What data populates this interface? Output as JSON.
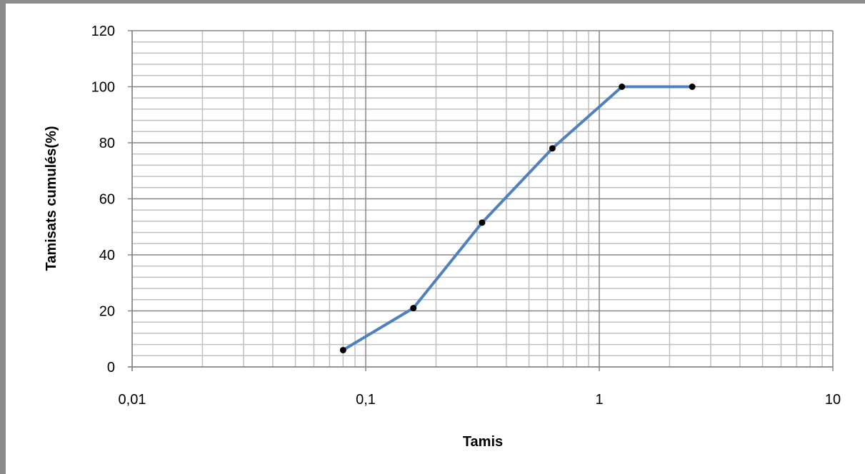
{
  "chart_data": {
    "type": "line",
    "title": "",
    "xlabel": "Tamis",
    "ylabel": "Tamisats cumulés(%)",
    "x_scale": "log",
    "xlim": [
      0.01,
      10
    ],
    "ylim": [
      0,
      120
    ],
    "x_ticks": [
      "0,01",
      "0,1",
      "1",
      "10"
    ],
    "y_ticks": [
      "0",
      "20",
      "40",
      "60",
      "80",
      "100",
      "120"
    ],
    "grid": true,
    "legend": "none",
    "series": [
      {
        "x": [
          0.08,
          0.16,
          0.315,
          0.63,
          1.25,
          2.5
        ],
        "y": [
          6,
          21,
          51.5,
          78,
          100,
          100
        ],
        "line_color": "#4f81bd",
        "marker_color": "#000000"
      }
    ]
  }
}
